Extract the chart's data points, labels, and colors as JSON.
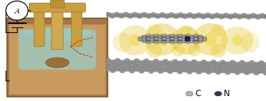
{
  "legend_c_label": "C",
  "legend_n_label": "N",
  "legend_c_color": "#b8b8b8",
  "legend_n_color": "#2a3a5a",
  "bg_color": "#ffffff",
  "arrow_color": "#cc2200",
  "graphene_atom_color": "#909090",
  "graphene_bond_color": "#666666",
  "graphene_edge_color": "#555555",
  "nitrogen_color": "#1a2a4a",
  "mol_c_color": "#aaaaaa",
  "yellow_glow": "#e8c832",
  "yellow_glow2": "#f0d840",
  "white_glow": "#fffff0",
  "left_outer_bg": "#a07848",
  "left_inner_bg": "#b88a50",
  "left_substrate_color": "#c89a60",
  "left_liquid_color": "#98ccc8",
  "left_tip_gold": "#c8a040",
  "left_tip_dark": "#a07828",
  "figsize": [
    3.78,
    1.44
  ],
  "dpi": 100
}
